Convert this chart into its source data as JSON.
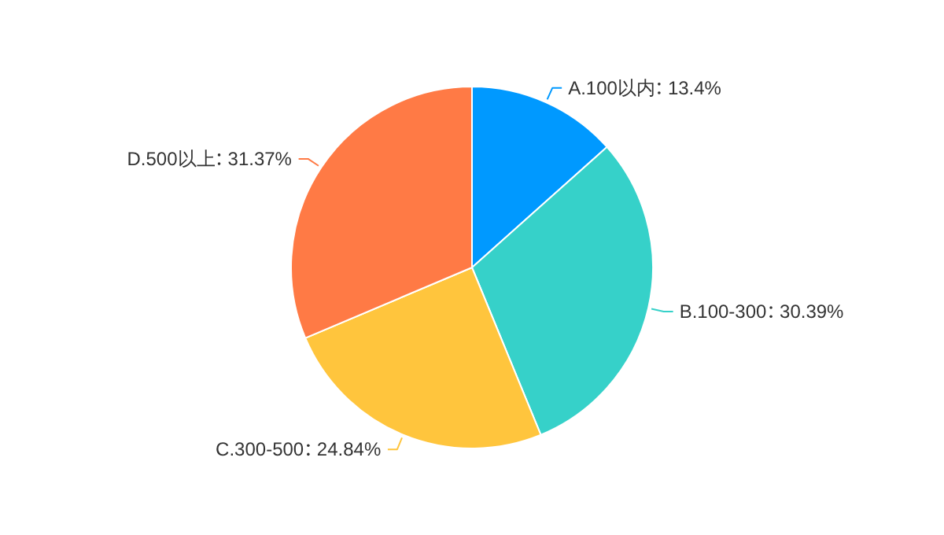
{
  "chart_data": {
    "type": "pie",
    "categories": [
      "A.100以内",
      "B.100-300",
      "C.300-500",
      "D.500以上"
    ],
    "values": [
      13.4,
      30.39,
      24.84,
      31.37
    ],
    "value_labels": [
      "13.4%",
      "30.39%",
      "24.84%",
      "31.37%"
    ],
    "colors": [
      "#0099ff",
      "#36d1c9",
      "#ffc53d",
      "#ff7a45"
    ]
  }
}
